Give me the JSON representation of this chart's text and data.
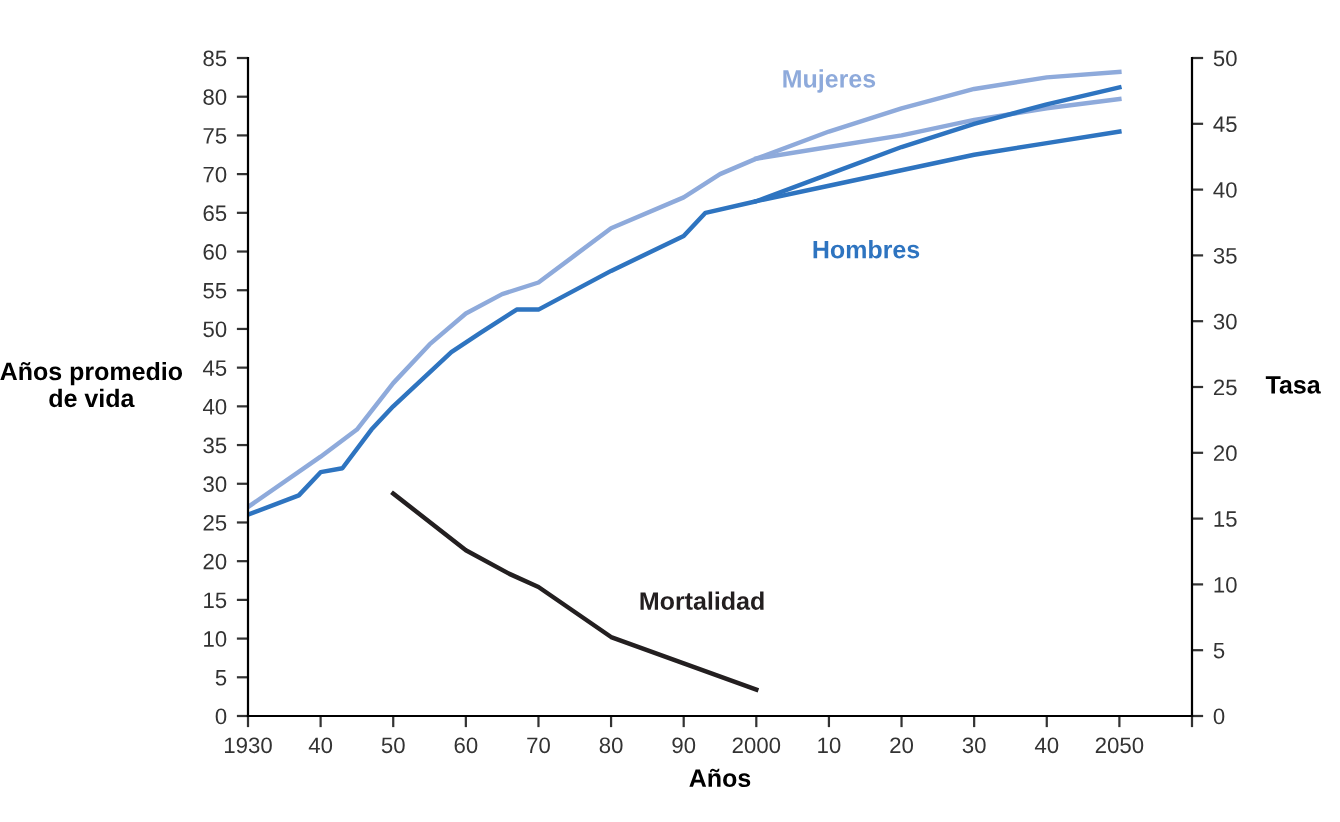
{
  "chart_data": {
    "type": "line",
    "xlabel": "Años",
    "ylabel": "Años promedio\nde vida",
    "y2label": "Tasa",
    "xlim": [
      1930,
      2060
    ],
    "xticks": [
      {
        "value": 1930,
        "label": "1930"
      },
      {
        "value": 1940,
        "label": "40"
      },
      {
        "value": 1950,
        "label": "50"
      },
      {
        "value": 1960,
        "label": "60"
      },
      {
        "value": 1970,
        "label": "70"
      },
      {
        "value": 1980,
        "label": "80"
      },
      {
        "value": 1990,
        "label": "90"
      },
      {
        "value": 2000,
        "label": "2000"
      },
      {
        "value": 2010,
        "label": "10"
      },
      {
        "value": 2020,
        "label": "20"
      },
      {
        "value": 2030,
        "label": "30"
      },
      {
        "value": 2040,
        "label": "40"
      },
      {
        "value": 2050,
        "label": "2050"
      },
      {
        "value": 2060,
        "label": null
      }
    ],
    "ylim": [
      0,
      85
    ],
    "yticks": [
      0,
      5,
      10,
      15,
      20,
      25,
      30,
      35,
      40,
      45,
      50,
      55,
      60,
      65,
      70,
      75,
      80,
      85
    ],
    "y2lim": [
      0,
      50
    ],
    "y2ticks": [
      0,
      5,
      10,
      15,
      20,
      25,
      30,
      35,
      40,
      45,
      50
    ],
    "grid": false,
    "legend": false,
    "marker": "none",
    "line_style": "solid",
    "series": [
      {
        "name": "Mujeres",
        "color": "#8eaadb",
        "x": [
          1930,
          1940,
          1945,
          1950,
          1955,
          1960,
          1965,
          1970,
          1975,
          1980,
          1990,
          1995,
          2000,
          2010,
          2020,
          2030,
          2040,
          2050
        ],
        "values": [
          27,
          33.5,
          37,
          43,
          48,
          52,
          54.5,
          56,
          59.5,
          63,
          67,
          70,
          72,
          75.5,
          78.5,
          81,
          82.5,
          83.2
        ]
      },
      {
        "color": "#8eaadb",
        "x": [
          2000,
          2010,
          2020,
          2030,
          2040,
          2050
        ],
        "values": [
          72,
          73.5,
          75,
          77,
          78.5,
          79.7
        ]
      },
      {
        "name": "Hombres",
        "color": "#2e74c0",
        "x": [
          1930,
          1937,
          1940,
          1943,
          1947,
          1950,
          1958,
          1962,
          1967,
          1970,
          1980,
          1990,
          1993,
          2000,
          2010,
          2020,
          2030,
          2040,
          2050
        ],
        "values": [
          26,
          28.5,
          31.5,
          32,
          37,
          40,
          47,
          49.5,
          52.5,
          52.5,
          57.5,
          62,
          65,
          66.5,
          70,
          73.5,
          76.5,
          79,
          81.2
        ]
      },
      {
        "color": "#2e74c0",
        "x": [
          2000,
          2010,
          2020,
          2030,
          2040,
          2050
        ],
        "values": [
          66.5,
          68.5,
          70.5,
          72.5,
          74,
          75.5
        ]
      },
      {
        "name": "Mortalidad",
        "color": "#231f20",
        "axis": "y2",
        "x": [
          1950,
          1960,
          1966,
          1970,
          1980,
          1990,
          2000
        ],
        "values": [
          16.9,
          12.6,
          10.8,
          9.8,
          6,
          4,
          2
        ]
      }
    ]
  }
}
